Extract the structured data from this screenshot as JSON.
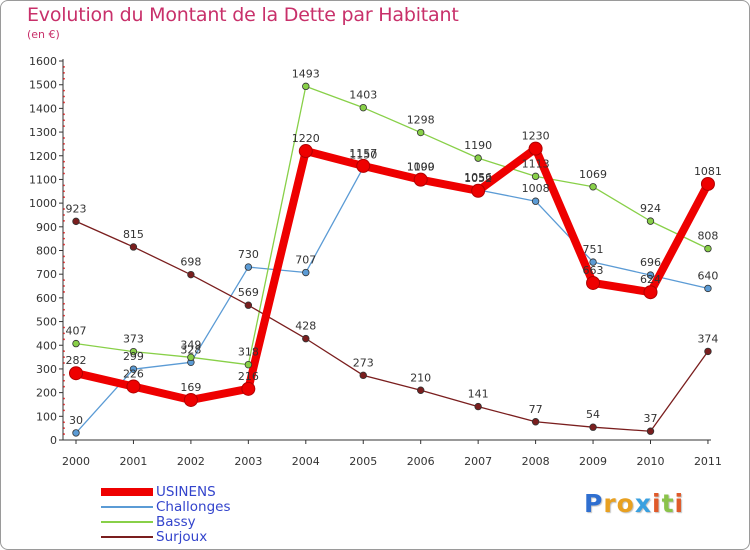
{
  "header": {
    "title": "Evolution du Montant de la Dette par Habitant",
    "subtitle": "(en €)"
  },
  "logo": {
    "text": "Proxiti",
    "letters": [
      {
        "char": "P",
        "color": "#2f6fd0"
      },
      {
        "char": "r",
        "color": "#e8a020"
      },
      {
        "char": "o",
        "color": "#e8a020"
      },
      {
        "char": "x",
        "color": "#3aa0e0"
      },
      {
        "char": "i",
        "color": "#e05a2a"
      },
      {
        "char": "t",
        "color": "#8bc34a"
      },
      {
        "char": "i",
        "color": "#e05a2a"
      }
    ]
  },
  "chart_data": {
    "type": "line",
    "title": "Evolution du Montant de la Dette par Habitant",
    "subtitle": "(en €)",
    "xlabel": "",
    "ylabel": "",
    "categories": [
      "2000",
      "2001",
      "2002",
      "2003",
      "2004",
      "2005",
      "2006",
      "2007",
      "2008",
      "2009",
      "2010",
      "2011"
    ],
    "ylim": [
      0,
      1600
    ],
    "yticks": [
      0,
      100,
      200,
      300,
      400,
      500,
      600,
      700,
      800,
      900,
      1000,
      1100,
      1200,
      1300,
      1400,
      1500,
      1600
    ],
    "grid": false,
    "legend_position": "bottom-left",
    "series": [
      {
        "name": "USINENS",
        "color": "#ee0000",
        "values": [
          282,
          226,
          169,
          216,
          1220,
          1157,
          1099,
          1052,
          1230,
          663,
          624,
          1081
        ],
        "labels": [
          "282",
          "226",
          "169",
          "216",
          "1220",
          "1157",
          "1099",
          "1052",
          "1230",
          "663",
          "624",
          "1081"
        ],
        "emphasis": true
      },
      {
        "name": "Challonges",
        "color": "#5b9bd5",
        "values": [
          30,
          299,
          328,
          730,
          707,
          1150,
          1100,
          1056,
          1008,
          751,
          696,
          640
        ],
        "labels": [
          "30",
          "299",
          "328",
          "730",
          "707",
          "1150",
          "1100",
          "1056",
          "1008",
          "751",
          "696",
          "640"
        ],
        "emphasis": false
      },
      {
        "name": "Bassy",
        "color": "#88d048",
        "values": [
          407,
          373,
          349,
          318,
          1493,
          1403,
          1298,
          1190,
          1113,
          1069,
          924,
          808
        ],
        "labels": [
          "407",
          "373",
          "349",
          "318",
          "1493",
          "1403",
          "1298",
          "1190",
          "1113",
          "1069",
          "924",
          "808"
        ],
        "emphasis": false
      },
      {
        "name": "Surjoux",
        "color": "#7a1e1e",
        "values": [
          923,
          815,
          698,
          569,
          428,
          273,
          210,
          141,
          77,
          54,
          37,
          374
        ],
        "labels": [
          "923",
          "815",
          "698",
          "569",
          "428",
          "273",
          "210",
          "141",
          "77",
          "54",
          "37",
          "374"
        ],
        "emphasis": false
      }
    ]
  }
}
